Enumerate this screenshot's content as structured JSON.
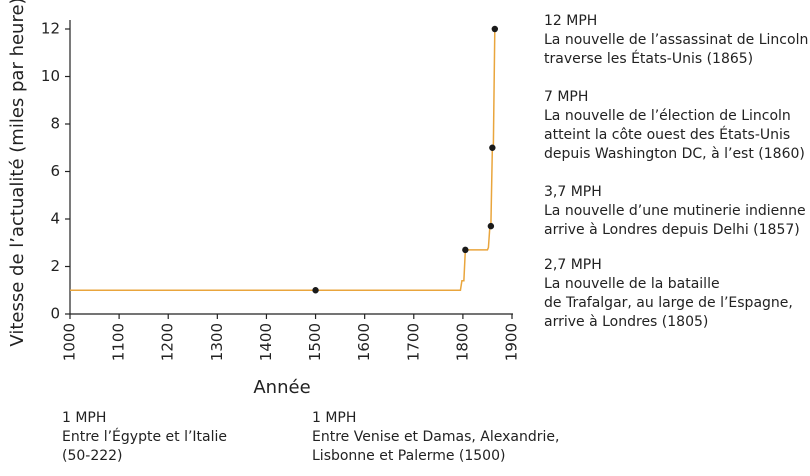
{
  "chart_data": {
    "type": "line",
    "xlabel": "Année",
    "ylabel": "Vitesse de l’actualité (miles par heure)",
    "xlim": [
      1000,
      1900
    ],
    "xticks": [
      1000,
      1100,
      1200,
      1300,
      1400,
      1500,
      1600,
      1700,
      1800,
      1900
    ],
    "ylim": [
      0,
      12
    ],
    "yticks": [
      0,
      2,
      4,
      6,
      8,
      10,
      12
    ],
    "series": [
      {
        "type": "line",
        "color": "#e9a53c",
        "x": [
          1000,
          1795,
          1798,
          1802,
          1805,
          1850,
          1852,
          1855,
          1857,
          1860,
          1862,
          1865
        ],
        "values": [
          1,
          1,
          1.4,
          1.4,
          2.7,
          2.7,
          2.8,
          3.7,
          3.7,
          7,
          7,
          12
        ]
      },
      {
        "type": "scatter",
        "color": "#1a1a1a",
        "x": [
          1500,
          1805,
          1857,
          1860,
          1865
        ],
        "values": [
          1,
          2.7,
          3.7,
          7,
          12
        ]
      }
    ],
    "annotations": [
      {
        "speed": "12 MPH",
        "lines": [
          "La nouvelle de l’assassinat de Lincoln",
          "traverse les États-Unis (1865)"
        ]
      },
      {
        "speed": "7 MPH",
        "lines": [
          "La nouvelle de l’élection de Lincoln",
          "atteint la côte ouest des États-Unis",
          "depuis Washington DC, à l’est (1860)"
        ]
      },
      {
        "speed": "3,7 MPH",
        "lines": [
          "La nouvelle d’une mutinerie indienne",
          "arrive à Londres depuis Delhi (1857)"
        ]
      },
      {
        "speed": "2,7 MPH",
        "lines": [
          "La nouvelle de la bataille",
          "de Trafalgar, au large de l’Espagne,",
          "arrive à Londres (1805)"
        ]
      },
      {
        "speed": "1 MPH",
        "lines": [
          "Entre l’Égypte et l’Italie",
          "(50-222)"
        ]
      },
      {
        "speed": "1 MPH",
        "lines": [
          "Entre Venise et Damas, Alexandrie,",
          "Lisbonne et Palerme (1500)"
        ]
      }
    ]
  }
}
